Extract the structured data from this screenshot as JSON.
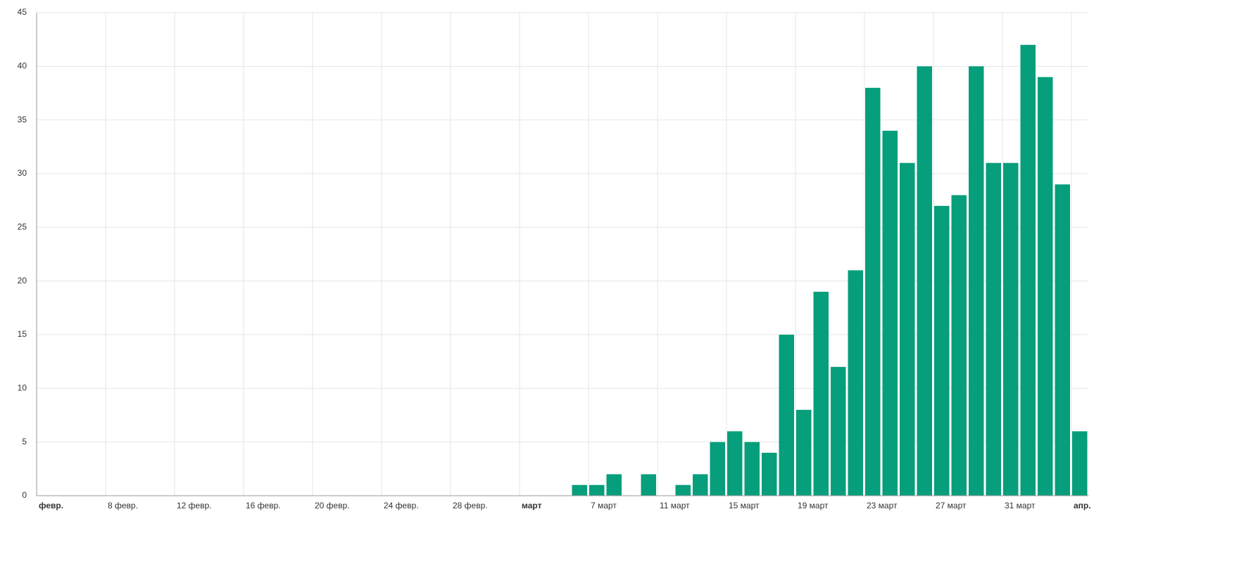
{
  "chart_data": {
    "type": "bar",
    "categories": [
      "февр.",
      null,
      null,
      null,
      "8 февр.",
      null,
      null,
      null,
      "12 февр.",
      null,
      null,
      null,
      "16 февр.",
      null,
      null,
      null,
      "20 февр.",
      null,
      null,
      null,
      "24 февр.",
      null,
      null,
      null,
      "28 февр.",
      null,
      null,
      null,
      "март",
      null,
      null,
      null,
      "7 март",
      null,
      null,
      null,
      "11 март",
      null,
      null,
      null,
      "15 март",
      null,
      null,
      null,
      "19 март",
      null,
      null,
      null,
      "23 март",
      null,
      null,
      null,
      "27 март",
      null,
      null,
      null,
      "31 март",
      null,
      null,
      null,
      "апр."
    ],
    "values": [
      0,
      0,
      0,
      0,
      0,
      0,
      0,
      0,
      0,
      0,
      0,
      0,
      0,
      0,
      0,
      0,
      0,
      0,
      0,
      0,
      0,
      0,
      0,
      0,
      0,
      0,
      0,
      0,
      0,
      0,
      0,
      1,
      1,
      2,
      0,
      2,
      0,
      1,
      2,
      5,
      6,
      5,
      4,
      15,
      8,
      19,
      12,
      21,
      38,
      34,
      31,
      40,
      27,
      28,
      40,
      31,
      31,
      42,
      39,
      29,
      6
    ],
    "color": "#069e7b",
    "ylim": [
      0,
      45
    ],
    "yticks": [
      0,
      5,
      10,
      15,
      20,
      25,
      30,
      35,
      40,
      45
    ],
    "grid": true
  }
}
